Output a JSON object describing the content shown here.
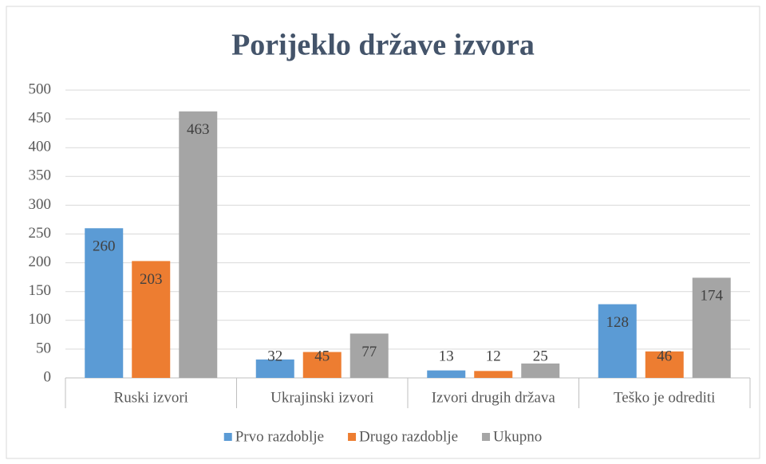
{
  "chart_data": {
    "type": "bar",
    "title": "Porijeklo države izvora",
    "categories": [
      "Ruski izvori",
      "Ukrajinski izvori",
      "Izvori drugih država",
      "Teško je odrediti"
    ],
    "series": [
      {
        "name": "Prvo razdoblje",
        "color": "#5b9bd5",
        "values": [
          260,
          32,
          13,
          128
        ]
      },
      {
        "name": "Drugo razdoblje",
        "color": "#ed7d31",
        "values": [
          203,
          45,
          12,
          46
        ]
      },
      {
        "name": "Ukupno",
        "color": "#a5a5a5",
        "values": [
          463,
          77,
          25,
          174
        ]
      }
    ],
    "ylim": [
      0,
      500
    ],
    "yticks": [
      0,
      50,
      100,
      150,
      200,
      250,
      300,
      350,
      400,
      450,
      500
    ],
    "grid": true,
    "legend": "bottom"
  }
}
